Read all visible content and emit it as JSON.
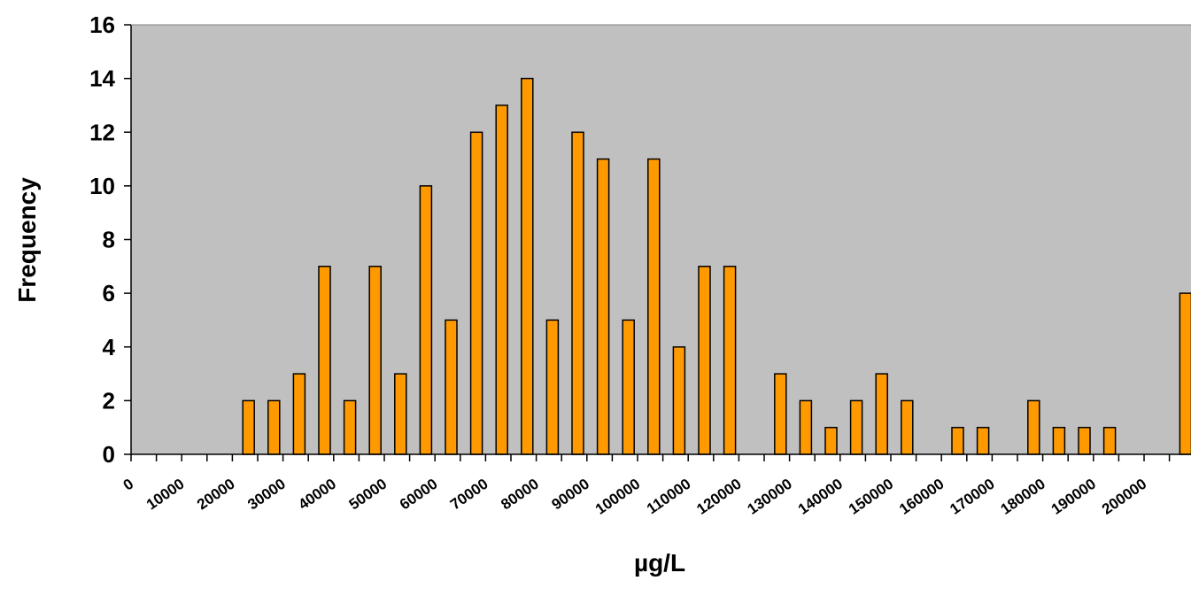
{
  "chart_data": {
    "type": "bar",
    "title": "",
    "xlabel": "µg/L",
    "ylabel": "Frequency",
    "ylim": [
      0,
      16
    ],
    "y_ticks": [
      0,
      2,
      4,
      6,
      8,
      10,
      12,
      14,
      16
    ],
    "x_tick_labels": [
      "0",
      "10000",
      "20000",
      "30000",
      "40000",
      "50000",
      "60000",
      "70000",
      "80000",
      "90000",
      "100000",
      "110000",
      "120000",
      "130000",
      "140000",
      "150000",
      "160000",
      "170000",
      "180000",
      "190000",
      "200000"
    ],
    "bin_width": 5000,
    "series": [
      {
        "x": [
          0,
          5000,
          10000,
          15000,
          20000,
          25000,
          30000,
          35000,
          40000,
          45000,
          50000,
          55000,
          60000,
          65000,
          70000,
          75000,
          80000,
          85000,
          90000,
          95000,
          100000,
          105000,
          110000,
          115000,
          120000,
          125000,
          130000,
          135000,
          140000,
          145000,
          150000,
          155000,
          160000,
          165000,
          170000,
          175000,
          180000,
          185000,
          190000,
          195000,
          200000,
          205000
        ],
        "values": [
          0,
          0,
          0,
          0,
          2,
          2,
          3,
          7,
          2,
          7,
          3,
          10,
          5,
          12,
          13,
          14,
          5,
          12,
          11,
          5,
          11,
          4,
          7,
          7,
          0,
          3,
          2,
          1,
          2,
          3,
          2,
          0,
          1,
          1,
          0,
          2,
          1,
          1,
          1,
          0,
          0,
          6
        ],
        "color": "#FF9900"
      }
    ],
    "plot_background": "#C0C0C0",
    "bar_outline": "#000000",
    "grid": false,
    "legend": "none"
  }
}
